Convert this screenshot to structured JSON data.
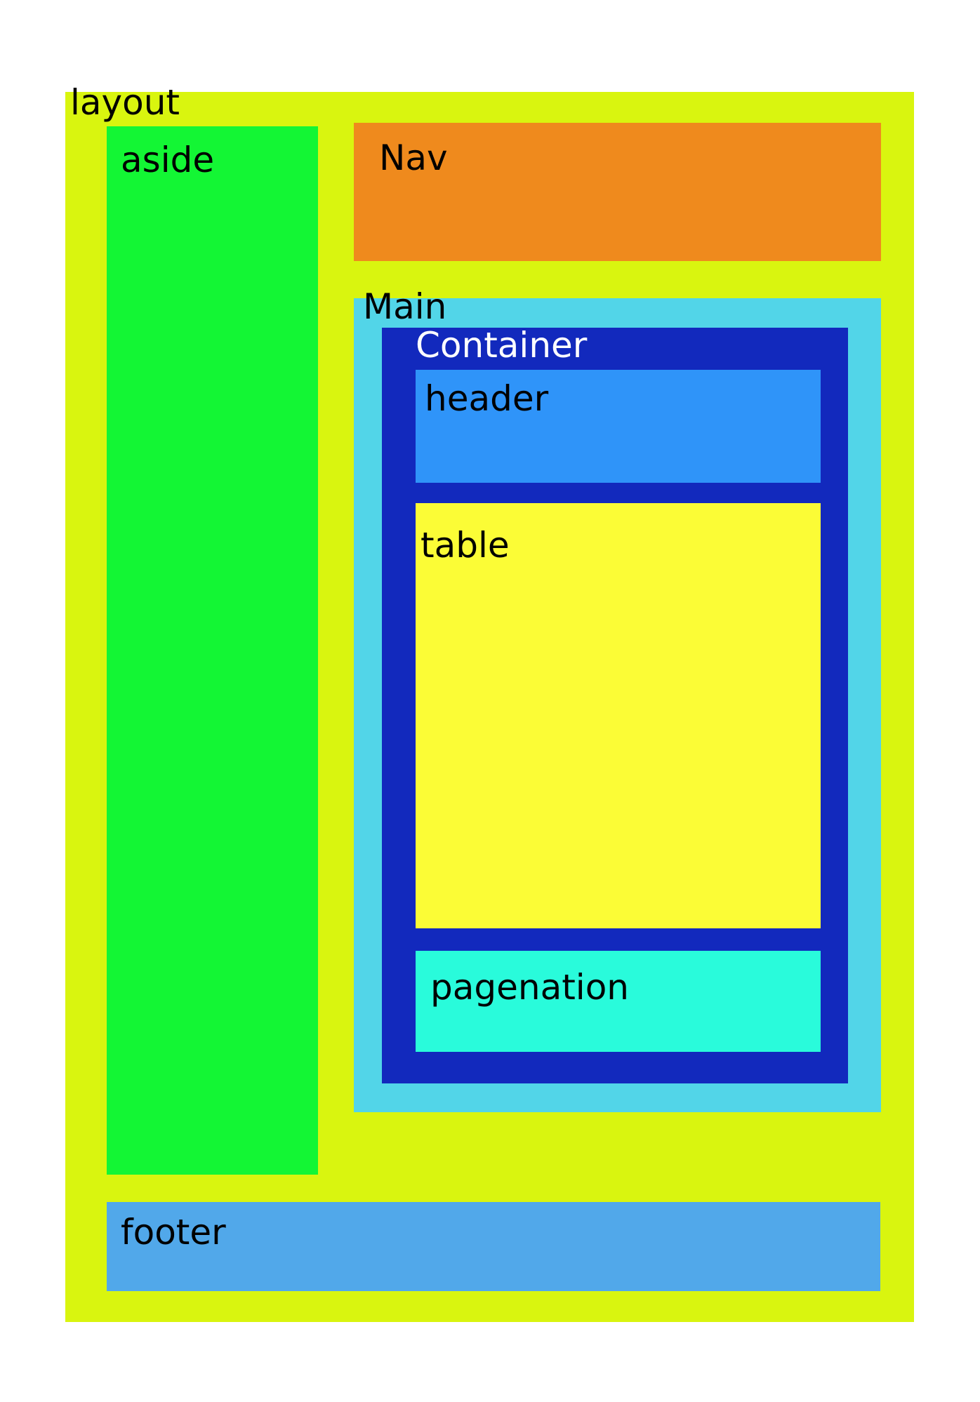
{
  "labels": {
    "layout": "layout",
    "aside": "aside",
    "nav": "Nav",
    "main": "Main",
    "container": "Container",
    "header": "header",
    "table": "table",
    "pagination": "pagenation",
    "footer": "footer"
  },
  "colors": {
    "layout": "#d9f50f",
    "aside": "#13f634",
    "nav": "#ef8a1d",
    "main": "#52d5e8",
    "container": "#1229bd",
    "header": "#2f94f9",
    "table": "#fbfc36",
    "pagination": "#29fbdb",
    "footer": "#51a8ea"
  }
}
